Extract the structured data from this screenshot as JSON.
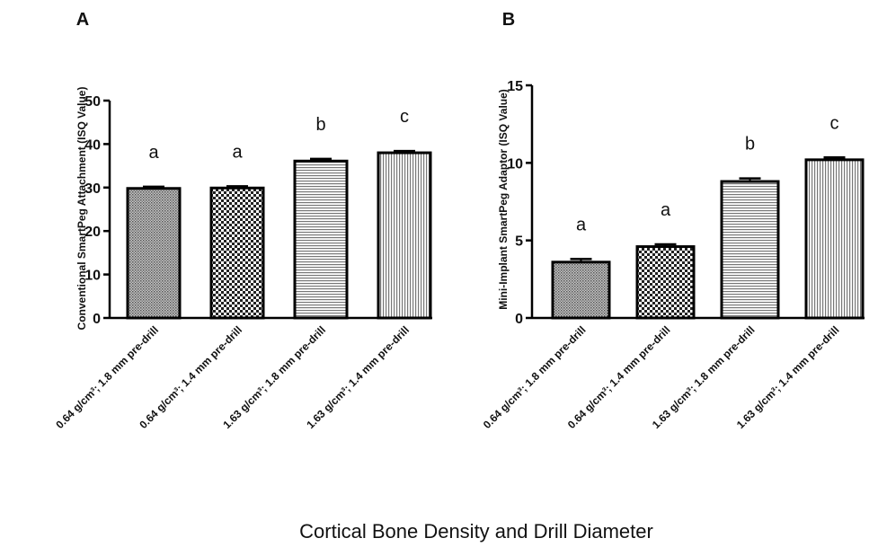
{
  "figure": {
    "shared_xlabel": "Cortical Bone Density and Drill Diameter"
  },
  "chart_data": [
    {
      "panel_label": "A",
      "type": "bar",
      "ylabel": "Conventional SmartPeg Attachment (ISQ Value)",
      "xlabel": "Cortical Bone Density and Drill Diameter",
      "ylim": [
        0,
        50
      ],
      "yticks": [
        "0",
        "10",
        "20",
        "30",
        "40",
        "50"
      ],
      "categories": [
        "0.64 g/cm³; 1.8 mm pre-drill",
        "0.64 g/cm³; 1.4 mm pre-drill",
        "1.63 g/cm³; 1.8 mm pre-drill",
        "1.63 g/cm³; 1.4 mm pre-drill"
      ],
      "values": [
        29.8,
        29.9,
        36.1,
        38.0
      ],
      "errors": [
        0.4,
        0.4,
        0.5,
        0.4
      ],
      "annotations": [
        "a",
        "a",
        "b",
        "c"
      ],
      "patterns": [
        "dense-dots",
        "checker",
        "horizontal-lines",
        "vertical-lines"
      ]
    },
    {
      "panel_label": "B",
      "type": "bar",
      "ylabel": "Mini-Implant SmartPeg Adaptor (ISQ Value)",
      "xlabel": "Cortical Bone Density and Drill Diameter",
      "ylim": [
        0,
        15
      ],
      "yticks": [
        "0",
        "5",
        "10",
        "15"
      ],
      "categories": [
        "0.64 g/cm³; 1.8 mm pre-drill",
        "0.64 g/cm³; 1.4 mm pre-drill",
        "1.63 g/cm³; 1.8 mm pre-drill",
        "1.63 g/cm³; 1.4 mm pre-drill"
      ],
      "values": [
        3.6,
        4.6,
        8.8,
        10.2
      ],
      "errors": [
        0.2,
        0.15,
        0.2,
        0.15
      ],
      "annotations": [
        "a",
        "a",
        "b",
        "c"
      ],
      "patterns": [
        "dense-dots",
        "checker",
        "horizontal-lines",
        "vertical-lines"
      ]
    }
  ]
}
